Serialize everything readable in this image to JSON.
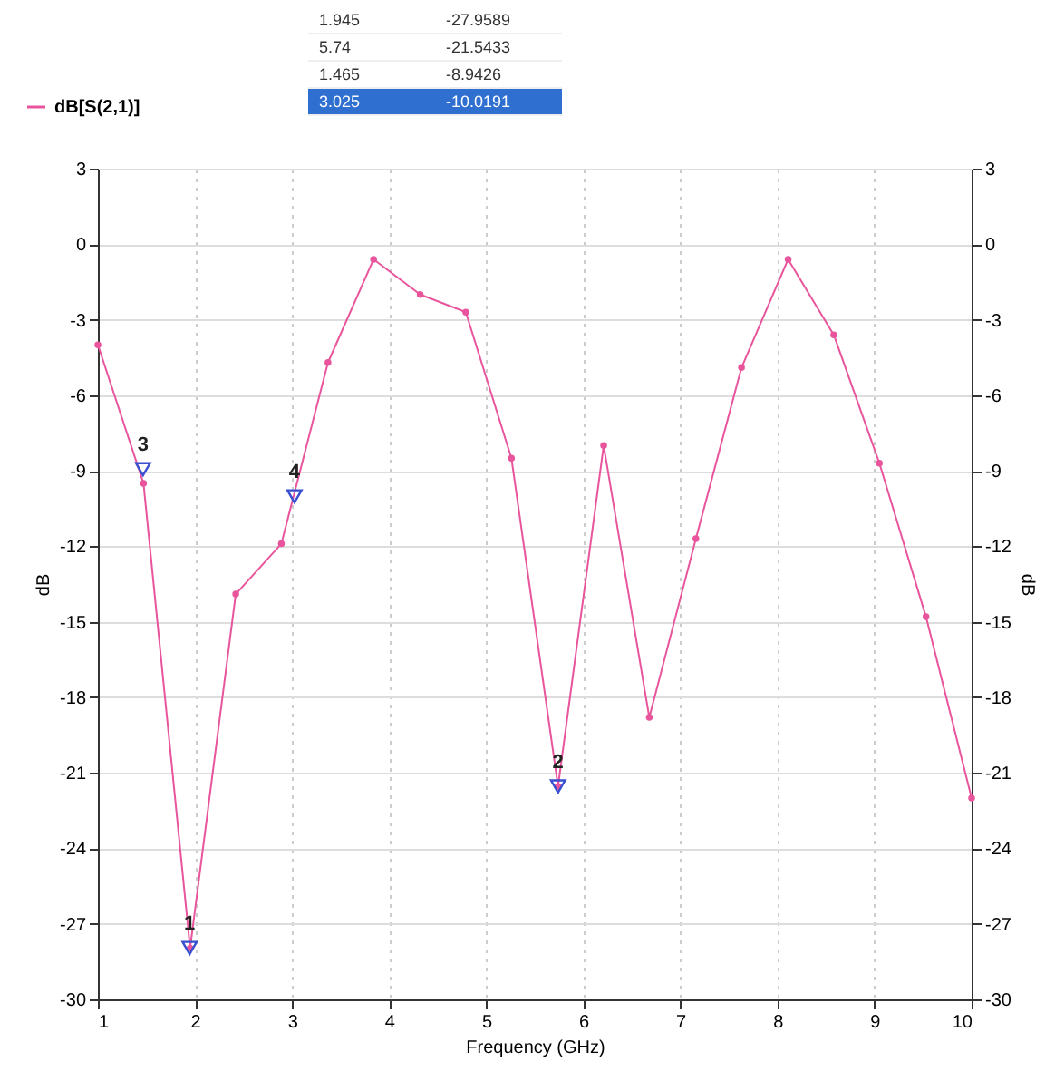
{
  "chart_data": {
    "type": "line",
    "xlabel": "Frequency (GHz)",
    "ylabel": "dB",
    "y2label": "dB",
    "x": [
      1,
      1.47,
      1.95,
      2.42,
      2.89,
      3.37,
      3.84,
      4.32,
      4.79,
      5.26,
      5.74,
      6.21,
      6.68,
      7.16,
      7.63,
      8.11,
      8.58,
      9.05,
      9.53,
      10
    ],
    "series": [
      {
        "name": "dB[S(2,1)]",
        "color": "#e8559c",
        "marker": "circle",
        "values": [
          -4.0,
          -9.5,
          -27.96,
          -13.9,
          -11.9,
          -4.7,
          -0.6,
          -2.0,
          -2.7,
          -8.5,
          -21.54,
          -8.0,
          -18.8,
          -11.7,
          -4.9,
          -0.6,
          -3.6,
          -8.7,
          -14.8,
          -22.0
        ]
      },
      {
        "type": "scatter",
        "color": "#3a4fd0",
        "marker": "triangle",
        "x": [
          1.945,
          5.74,
          1.465,
          3.025
        ],
        "values": [
          -27.9589,
          -21.5433,
          -8.9426,
          -10.0191
        ]
      }
    ],
    "annotations": [
      "1.945",
      "-27.9589",
      "5.74",
      "-21.5433",
      "1.465",
      "-8.9426",
      "3.025",
      "-10.0191",
      {
        "text": "1",
        "x": 1.945,
        "y": -27.9589
      },
      {
        "text": "2",
        "x": 5.74,
        "y": -21.5433
      },
      {
        "text": "3",
        "x": 1.465,
        "y": -8.9426
      },
      {
        "text": "4",
        "x": 3.025,
        "y": -10.0191
      }
    ],
    "xlim": [
      1,
      10
    ],
    "xticks": [
      1,
      2,
      3,
      4,
      5,
      6,
      7,
      8,
      9,
      10
    ],
    "ylim": [
      -30,
      3
    ],
    "yticks": [
      3,
      0,
      -3,
      -6,
      -9,
      -12,
      -15,
      -18,
      -21,
      -24,
      -27,
      -30
    ],
    "y2lim": [
      -30,
      3
    ],
    "y2ticks": [
      3,
      0,
      -3,
      -6,
      -9,
      -12,
      -15,
      -18,
      -21,
      -24,
      -27,
      -30
    ],
    "grid": true,
    "legend": "top left"
  }
}
